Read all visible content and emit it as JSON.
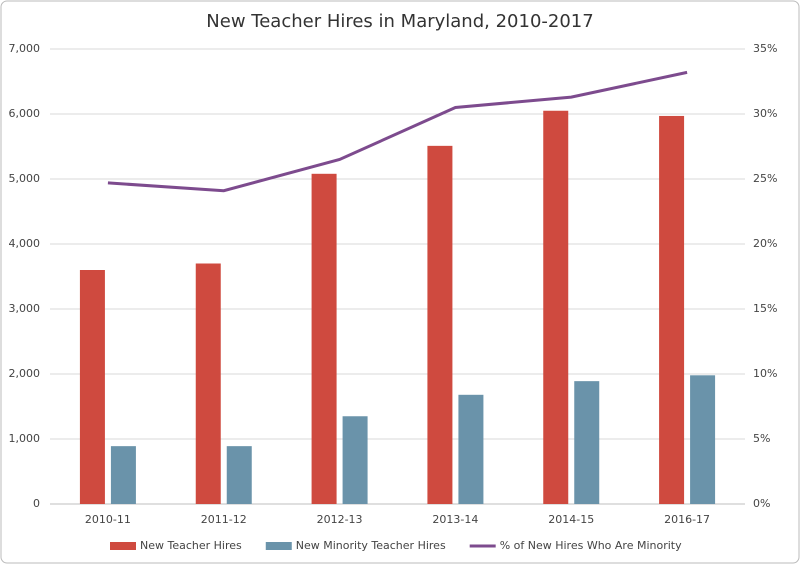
{
  "chart_data": {
    "type": "bar-line",
    "title": "New Teacher Hires in Maryland, 2010-2017",
    "categories": [
      "2010-11",
      "2011-12",
      "2012-13",
      "2013-14",
      "2014-15",
      "2016-17"
    ],
    "series": [
      {
        "name": "New Teacher Hires",
        "color": "#cf4a3f",
        "type": "bar",
        "values": [
          3600,
          3700,
          5080,
          5510,
          6050,
          5970
        ]
      },
      {
        "name": "New Minority Teacher Hires",
        "color": "#6a93aa",
        "type": "bar",
        "values": [
          890,
          890,
          1350,
          1680,
          1890,
          1980
        ]
      },
      {
        "name": "% of New Hires Who Are Minority",
        "color": "#7d4b8e",
        "type": "line",
        "axis": "y2",
        "values": [
          24.7,
          24.1,
          26.5,
          30.5,
          31.3,
          33.2
        ]
      }
    ],
    "ylim": [
      0,
      7000
    ],
    "yticks": [
      0,
      {
        "value": 1000,
        "label": "1,000"
      },
      {
        "value": 2000,
        "label": "2,000"
      },
      {
        "value": 3000,
        "label": "3,000"
      },
      {
        "value": 4000,
        "label": "4,000"
      },
      {
        "value": 5000,
        "label": "5,000"
      },
      {
        "value": 6000,
        "label": "6,000"
      },
      {
        "value": 7000,
        "label": "7,000"
      }
    ],
    "y2lim": [
      0,
      35
    ],
    "y2ticks": [
      {
        "value": 0,
        "label": "0%"
      },
      {
        "value": 5,
        "label": "5%"
      },
      {
        "value": 10,
        "label": "10%"
      },
      {
        "value": 15,
        "label": "15%"
      },
      {
        "value": 20,
        "label": "20%"
      },
      {
        "value": 25,
        "label": "25%"
      },
      {
        "value": 30,
        "label": "30%"
      },
      {
        "value": 35,
        "label": "35%"
      }
    ],
    "grid": true,
    "legend": "bottom"
  }
}
